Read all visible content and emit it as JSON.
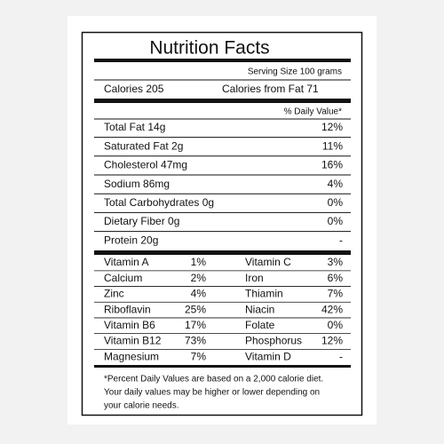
{
  "label": {
    "title": "Nutrition Facts",
    "serving_size": "Serving Size 100 grams",
    "calories": "Calories 205",
    "calories_from_fat": "Calories from Fat 71",
    "daily_value_header": "% Daily Value*",
    "nutrients": [
      [
        "Total Fat 14g",
        "12%"
      ],
      [
        "Saturated Fat 2g",
        "11%"
      ],
      [
        "Cholesterol 47mg",
        "16%"
      ],
      [
        "Sodium 86mg",
        "4%"
      ],
      [
        "Total Carbohydrates 0g",
        "0%"
      ],
      [
        "Dietary Fiber 0g",
        "0%"
      ],
      [
        "Protein 20g",
        "-"
      ]
    ],
    "vitamins": [
      [
        [
          "Vitamin A",
          "1%"
        ],
        [
          "Vitamin C",
          "3%"
        ]
      ],
      [
        [
          "Calcium",
          "2%"
        ],
        [
          "Iron",
          "6%"
        ]
      ],
      [
        [
          "Zinc",
          "4%"
        ],
        [
          "Thiamin",
          "7%"
        ]
      ],
      [
        [
          "Riboflavin",
          "25%"
        ],
        [
          "Niacin",
          "42%"
        ]
      ],
      [
        [
          "Vitamin B6",
          "17%"
        ],
        [
          "Folate",
          "0%"
        ]
      ],
      [
        [
          "Vitamin B12",
          "73%"
        ],
        [
          "Phosphorus",
          "12%"
        ]
      ],
      [
        [
          "Magnesium",
          "7%"
        ],
        [
          "Vitamin D",
          "-"
        ]
      ]
    ],
    "footnote": [
      "*Percent Daily Values are based on a 2,000 calorie diet.",
      "Your daily values may be higher or lower depending on",
      "your calorie needs."
    ]
  }
}
